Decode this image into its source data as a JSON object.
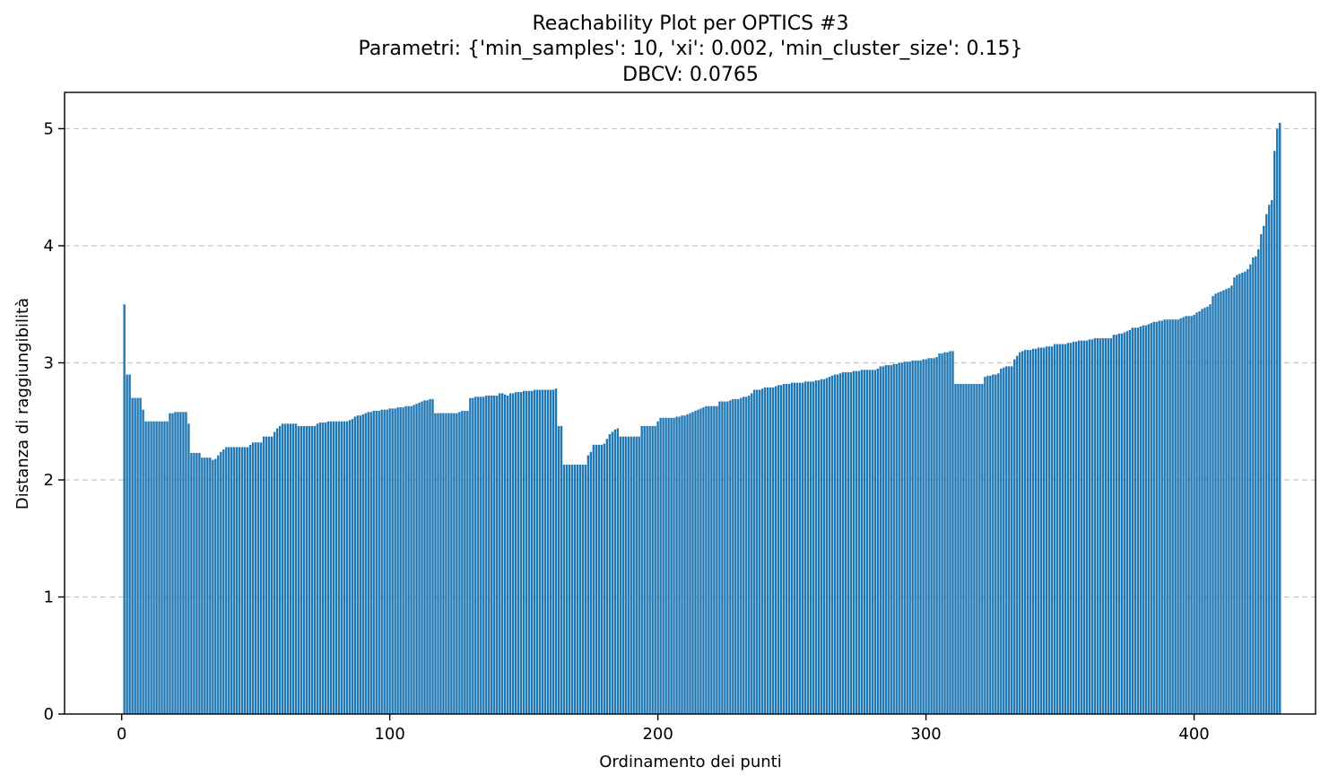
{
  "chart_data": {
    "type": "bar",
    "title_lines": [
      "Reachability Plot per OPTICS #3",
      "Parametri: {'min_samples': 10, 'xi': 0.002, 'min_cluster_size': 0.15}",
      "DBCV: 0.0765"
    ],
    "xlabel": "Ordinamento dei punti",
    "ylabel": "Distanza di raggiungibilità",
    "xlim": [
      -21.3,
      445.3
    ],
    "ylim": [
      0,
      5.31
    ],
    "xticks": [
      0,
      100,
      200,
      300,
      400
    ],
    "xtick_labels": [
      "0",
      "100",
      "200",
      "300",
      "400"
    ],
    "yticks": [
      0,
      1,
      2,
      3,
      4,
      5
    ],
    "ytick_labels": [
      "0",
      "1",
      "2",
      "3",
      "4",
      "5"
    ],
    "grid": "y-dashed",
    "bar_color": "#1f77b4",
    "x_start": 1,
    "values": [
      3.5,
      2.9,
      2.9,
      2.7,
      2.7,
      2.7,
      2.7,
      2.6,
      2.5,
      2.5,
      2.5,
      2.5,
      2.5,
      2.5,
      2.5,
      2.5,
      2.5,
      2.57,
      2.57,
      2.58,
      2.58,
      2.58,
      2.58,
      2.58,
      2.48,
      2.23,
      2.23,
      2.23,
      2.23,
      2.19,
      2.19,
      2.19,
      2.19,
      2.17,
      2.18,
      2.21,
      2.24,
      2.26,
      2.28,
      2.28,
      2.28,
      2.28,
      2.28,
      2.28,
      2.28,
      2.28,
      2.28,
      2.3,
      2.32,
      2.32,
      2.32,
      2.32,
      2.37,
      2.37,
      2.37,
      2.37,
      2.41,
      2.44,
      2.46,
      2.48,
      2.48,
      2.48,
      2.48,
      2.48,
      2.48,
      2.46,
      2.46,
      2.46,
      2.46,
      2.46,
      2.46,
      2.46,
      2.48,
      2.49,
      2.49,
      2.49,
      2.5,
      2.5,
      2.5,
      2.5,
      2.5,
      2.5,
      2.5,
      2.5,
      2.51,
      2.52,
      2.54,
      2.55,
      2.55,
      2.56,
      2.57,
      2.58,
      2.58,
      2.59,
      2.59,
      2.59,
      2.6,
      2.6,
      2.6,
      2.61,
      2.61,
      2.61,
      2.62,
      2.62,
      2.62,
      2.63,
      2.63,
      2.63,
      2.64,
      2.65,
      2.66,
      2.67,
      2.68,
      2.68,
      2.69,
      2.69,
      2.57,
      2.57,
      2.57,
      2.57,
      2.57,
      2.57,
      2.57,
      2.57,
      2.57,
      2.58,
      2.59,
      2.59,
      2.59,
      2.7,
      2.7,
      2.71,
      2.71,
      2.71,
      2.71,
      2.72,
      2.72,
      2.72,
      2.72,
      2.72,
      2.74,
      2.74,
      2.73,
      2.72,
      2.74,
      2.74,
      2.75,
      2.75,
      2.75,
      2.76,
      2.76,
      2.76,
      2.76,
      2.77,
      2.77,
      2.77,
      2.77,
      2.77,
      2.77,
      2.77,
      2.77,
      2.78,
      2.46,
      2.46,
      2.13,
      2.13,
      2.13,
      2.13,
      2.13,
      2.13,
      2.13,
      2.13,
      2.13,
      2.21,
      2.24,
      2.3,
      2.3,
      2.3,
      2.3,
      2.31,
      2.35,
      2.39,
      2.41,
      2.43,
      2.44,
      2.37,
      2.37,
      2.37,
      2.37,
      2.37,
      2.37,
      2.37,
      2.37,
      2.46,
      2.46,
      2.46,
      2.46,
      2.46,
      2.46,
      2.5,
      2.53,
      2.53,
      2.53,
      2.53,
      2.53,
      2.53,
      2.54,
      2.54,
      2.55,
      2.55,
      2.56,
      2.57,
      2.58,
      2.59,
      2.6,
      2.61,
      2.62,
      2.63,
      2.63,
      2.63,
      2.63,
      2.63,
      2.67,
      2.67,
      2.67,
      2.67,
      2.68,
      2.69,
      2.69,
      2.69,
      2.7,
      2.71,
      2.71,
      2.72,
      2.74,
      2.77,
      2.77,
      2.77,
      2.78,
      2.79,
      2.79,
      2.79,
      2.79,
      2.8,
      2.81,
      2.81,
      2.82,
      2.82,
      2.82,
      2.83,
      2.83,
      2.83,
      2.83,
      2.83,
      2.84,
      2.84,
      2.84,
      2.84,
      2.85,
      2.85,
      2.86,
      2.86,
      2.87,
      2.88,
      2.89,
      2.9,
      2.9,
      2.91,
      2.92,
      2.92,
      2.92,
      2.92,
      2.93,
      2.93,
      2.93,
      2.94,
      2.94,
      2.94,
      2.94,
      2.94,
      2.94,
      2.95,
      2.97,
      2.97,
      2.98,
      2.98,
      2.98,
      2.99,
      2.99,
      3.0,
      3.0,
      3.01,
      3.01,
      3.01,
      3.02,
      3.02,
      3.02,
      3.02,
      3.03,
      3.03,
      3.04,
      3.04,
      3.04,
      3.05,
      3.08,
      3.08,
      3.09,
      3.09,
      3.1,
      3.1,
      2.82,
      2.82,
      2.82,
      2.82,
      2.82,
      2.82,
      2.82,
      2.82,
      2.82,
      2.82,
      2.82,
      2.88,
      2.89,
      2.89,
      2.9,
      2.9,
      2.91,
      2.95,
      2.96,
      2.97,
      2.97,
      2.97,
      3.03,
      3.06,
      3.09,
      3.1,
      3.11,
      3.11,
      3.11,
      3.12,
      3.12,
      3.13,
      3.13,
      3.13,
      3.14,
      3.14,
      3.14,
      3.16,
      3.16,
      3.16,
      3.16,
      3.16,
      3.17,
      3.17,
      3.18,
      3.18,
      3.19,
      3.19,
      3.19,
      3.19,
      3.2,
      3.2,
      3.21,
      3.21,
      3.21,
      3.21,
      3.21,
      3.21,
      3.21,
      3.24,
      3.24,
      3.25,
      3.25,
      3.26,
      3.27,
      3.28,
      3.3,
      3.3,
      3.3,
      3.31,
      3.32,
      3.32,
      3.33,
      3.34,
      3.35,
      3.35,
      3.36,
      3.36,
      3.37,
      3.37,
      3.37,
      3.37,
      3.37,
      3.37,
      3.38,
      3.39,
      3.4,
      3.4,
      3.4,
      3.41,
      3.43,
      3.44,
      3.46,
      3.47,
      3.48,
      3.5,
      3.57,
      3.59,
      3.6,
      3.61,
      3.62,
      3.63,
      3.64,
      3.66,
      3.73,
      3.75,
      3.76,
      3.77,
      3.78,
      3.8,
      3.84,
      3.9,
      3.91,
      3.97,
      4.1,
      4.17,
      4.27,
      4.35,
      4.39,
      4.81,
      5.0,
      5.05
    ]
  }
}
